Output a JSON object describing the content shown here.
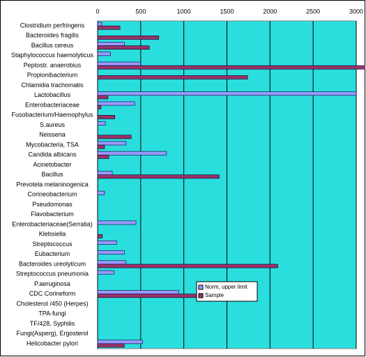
{
  "chart_data": {
    "type": "bar",
    "orientation": "horizontal",
    "categories": [
      "Clostridium perfringens",
      "Bacteroides fragilis",
      "Bacillus cereus",
      "Staphylococcus haemolyticus",
      "Peptostr. anaerobius",
      "Propionibacterium",
      "Chlamidia trachomatis",
      "Lactobacillus",
      "Enterobacteriaceae",
      "Fusobacterium/Haemophylus",
      "S.aureus",
      "Neisseria",
      "Mycobacteria, TSA",
      "Candida albicans",
      "Acinetobacter",
      "Bacillus",
      "Prevotela melaninogenica",
      "Corineobacterium",
      "Pseudomonas",
      "Flavobacterium",
      "Enterobacteriaceae(Serratia)",
      "Klebsiella",
      "Streptococcus",
      "Eubacterium",
      "Bacteroides ureolyticum",
      "Streptococcus pneumonia",
      "P.aeruginosa",
      "CDC Corineform",
      "Cholesterol /450 (Herpes)",
      "TPA-fungi",
      "TF/428, Syphilis",
      "Fungi(Asperg), Ergosterol",
      "Helicobacter pylori"
    ],
    "series": [
      {
        "name": "Norm, upper limit",
        "color": "#9999ff",
        "values": [
          50,
          0,
          310,
          150,
          500,
          0,
          0,
          3000,
          430,
          0,
          90,
          0,
          330,
          800,
          0,
          170,
          0,
          80,
          0,
          0,
          445,
          0,
          220,
          310,
          330,
          190,
          0,
          940,
          0,
          0,
          0,
          0,
          520
        ]
      },
      {
        "name": "Sample",
        "color": "#993366",
        "values": [
          260,
          710,
          600,
          0,
          3200,
          1740,
          0,
          120,
          40,
          200,
          0,
          390,
          80,
          130,
          0,
          1410,
          0,
          0,
          0,
          0,
          0,
          55,
          0,
          0,
          2090,
          0,
          0,
          1170,
          0,
          0,
          0,
          0,
          310
        ]
      }
    ],
    "xlim": [
      0,
      3000
    ],
    "xticks": [
      0,
      500,
      1000,
      1500,
      2000,
      2500,
      3000
    ],
    "grid": true,
    "background": "#2adede",
    "legend": "inside"
  }
}
